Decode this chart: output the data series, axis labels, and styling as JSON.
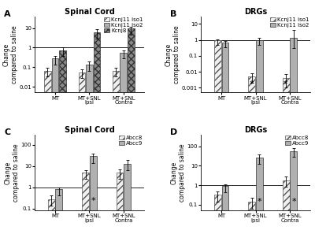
{
  "panel_A": {
    "title": "Spinal Cord",
    "label": "A",
    "groups": [
      "MT",
      "MT+SNL\nIpsi",
      "MT+SNL\nContra"
    ],
    "series": [
      {
        "name": "Kcnj11 iso1",
        "values": [
          0.065,
          0.055,
          0.065
        ],
        "errors_hi": [
          0.025,
          0.025,
          0.025
        ],
        "errors_lo": [
          0.02,
          0.02,
          0.02
        ],
        "facecolor": "#f0f0f0",
        "hatch": "////",
        "edgecolor": "#555555"
      },
      {
        "name": "Kcnj11 iso2",
        "values": [
          0.28,
          0.13,
          0.55
        ],
        "errors_hi": [
          0.1,
          0.06,
          0.2
        ],
        "errors_lo": [
          0.08,
          0.05,
          0.15
        ],
        "facecolor": "#b0b0b0",
        "hatch": "",
        "edgecolor": "#333333"
      },
      {
        "name": "Kcnj8",
        "values": [
          0.75,
          6.0,
          9.5
        ],
        "errors_hi": [
          0.3,
          3.0,
          2.0
        ],
        "errors_lo": [
          0.2,
          2.0,
          1.5
        ],
        "facecolor": "#888888",
        "hatch": "xxxx",
        "edgecolor": "#333333"
      }
    ],
    "stars": [
      null,
      null,
      null
    ],
    "ylim": [
      0.005,
      40
    ],
    "ylabel": "Change\ncompared to saline",
    "yticks": [
      0.01,
      0.1,
      1,
      10
    ],
    "yticklabels": [
      "0.01",
      "0.1",
      "1",
      "10"
    ],
    "hline": 1.0
  },
  "panel_B": {
    "title": "DRGs",
    "label": "B",
    "groups": [
      "MT",
      "MT+SNL\nIpsi",
      "MT+SNL\nContra"
    ],
    "series": [
      {
        "name": "Kcnj11 iso1",
        "values": [
          1.0,
          0.005,
          0.004
        ],
        "errors_hi": [
          0.12,
          0.003,
          0.003
        ],
        "errors_lo": [
          0.12,
          0.003,
          0.003
        ],
        "facecolor": "#f0f0f0",
        "hatch": "////",
        "edgecolor": "#555555"
      },
      {
        "name": "Kcnj11 iso2",
        "values": [
          0.72,
          0.97,
          1.3
        ],
        "errors_hi": [
          0.18,
          0.35,
          3.0
        ],
        "errors_lo": [
          0.18,
          0.35,
          1.0
        ],
        "facecolor": "#b0b0b0",
        "hatch": "",
        "edgecolor": "#333333"
      }
    ],
    "stars": [
      null,
      "both",
      "both"
    ],
    "star_x": [
      null,
      -0.12,
      -0.12
    ],
    "ylim": [
      0.0005,
      30
    ],
    "ylabel": "Change\ncompared to saline",
    "yticks": [
      0.001,
      0.01,
      0.1,
      1,
      10
    ],
    "yticklabels": [
      "0.001",
      "0.01",
      "0.1",
      "1",
      "10"
    ],
    "hline": 1.0
  },
  "panel_C": {
    "title": "Spinal Cord",
    "label": "C",
    "groups": [
      "MT",
      "MT+SNL\nIpsi",
      "MT+SNL\nContra"
    ],
    "series": [
      {
        "name": "Abcc8",
        "values": [
          0.28,
          5.0,
          5.0
        ],
        "errors_hi": [
          0.12,
          1.5,
          1.8
        ],
        "errors_lo": [
          0.12,
          1.5,
          1.8
        ],
        "facecolor": "#f0f0f0",
        "hatch": "////",
        "edgecolor": "#555555"
      },
      {
        "name": "Abcc9",
        "values": [
          0.8,
          28.0,
          13.0
        ],
        "errors_hi": [
          0.2,
          9.0,
          6.0
        ],
        "errors_lo": [
          0.2,
          9.0,
          6.0
        ],
        "facecolor": "#b0b0b0",
        "hatch": "",
        "edgecolor": "#333333"
      }
    ],
    "stars": [
      null,
      "abcc9",
      null
    ],
    "star_x": [
      null,
      0.12,
      null
    ],
    "ylim": [
      0.08,
      300
    ],
    "ylabel": "Change\ncompared to saline",
    "yticks": [
      0.1,
      1,
      10,
      100
    ],
    "yticklabels": [
      "0.1",
      "1",
      "10",
      "100"
    ],
    "hline": 1.0
  },
  "panel_D": {
    "title": "DRGs",
    "label": "D",
    "groups": [
      "MT",
      "MT+SNL\nIpsi",
      "MT+SNL\nContra"
    ],
    "series": [
      {
        "name": "Abcc8",
        "values": [
          0.32,
          0.14,
          1.8
        ],
        "errors_hi": [
          0.18,
          0.08,
          1.0
        ],
        "errors_lo": [
          0.18,
          0.08,
          1.0
        ],
        "facecolor": "#f0f0f0",
        "hatch": "////",
        "edgecolor": "#555555"
      },
      {
        "name": "Abcc9",
        "values": [
          0.9,
          25.0,
          55.0
        ],
        "errors_hi": [
          0.25,
          12.0,
          22.0
        ],
        "errors_lo": [
          0.25,
          12.0,
          22.0
        ],
        "facecolor": "#b0b0b0",
        "hatch": "",
        "edgecolor": "#333333"
      }
    ],
    "stars": [
      null,
      "abcc9",
      "abcc9"
    ],
    "star_x": [
      null,
      0.12,
      0.12
    ],
    "ylim": [
      0.05,
      400
    ],
    "ylabel": "Change\ncompared to saline",
    "yticks": [
      0.1,
      1,
      10,
      100
    ],
    "yticklabels": [
      "0.1",
      "1",
      "10",
      "100"
    ],
    "hline": 1.0
  },
  "bar_width": 0.22,
  "fontsize_title": 7,
  "fontsize_tick": 5,
  "fontsize_label": 5.5,
  "fontsize_legend": 5,
  "fontsize_star": 8
}
